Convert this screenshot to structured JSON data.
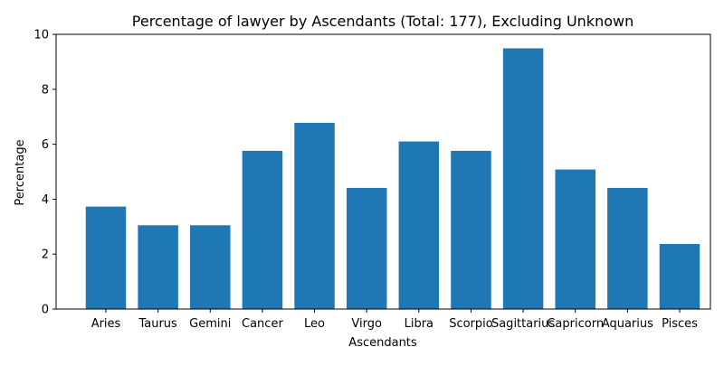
{
  "chart_data": {
    "type": "bar",
    "title": "Percentage of lawyer by Ascendants (Total: 177), Excluding Unknown",
    "xlabel": "Ascendants",
    "ylabel": "Percentage",
    "categories": [
      "Aries",
      "Taurus",
      "Gemini",
      "Cancer",
      "Leo",
      "Virgo",
      "Libra",
      "Scorpio",
      "Sagittarius",
      "Capricorn",
      "Aquarius",
      "Pisces"
    ],
    "values": [
      3.73,
      3.05,
      3.05,
      5.76,
      6.78,
      4.41,
      6.1,
      5.76,
      9.49,
      5.08,
      4.41,
      2.37
    ],
    "ylim": [
      0,
      10
    ],
    "yticks": [
      0,
      2,
      4,
      6,
      8,
      10
    ],
    "grid": false,
    "bar_color": "#1f77b4"
  }
}
